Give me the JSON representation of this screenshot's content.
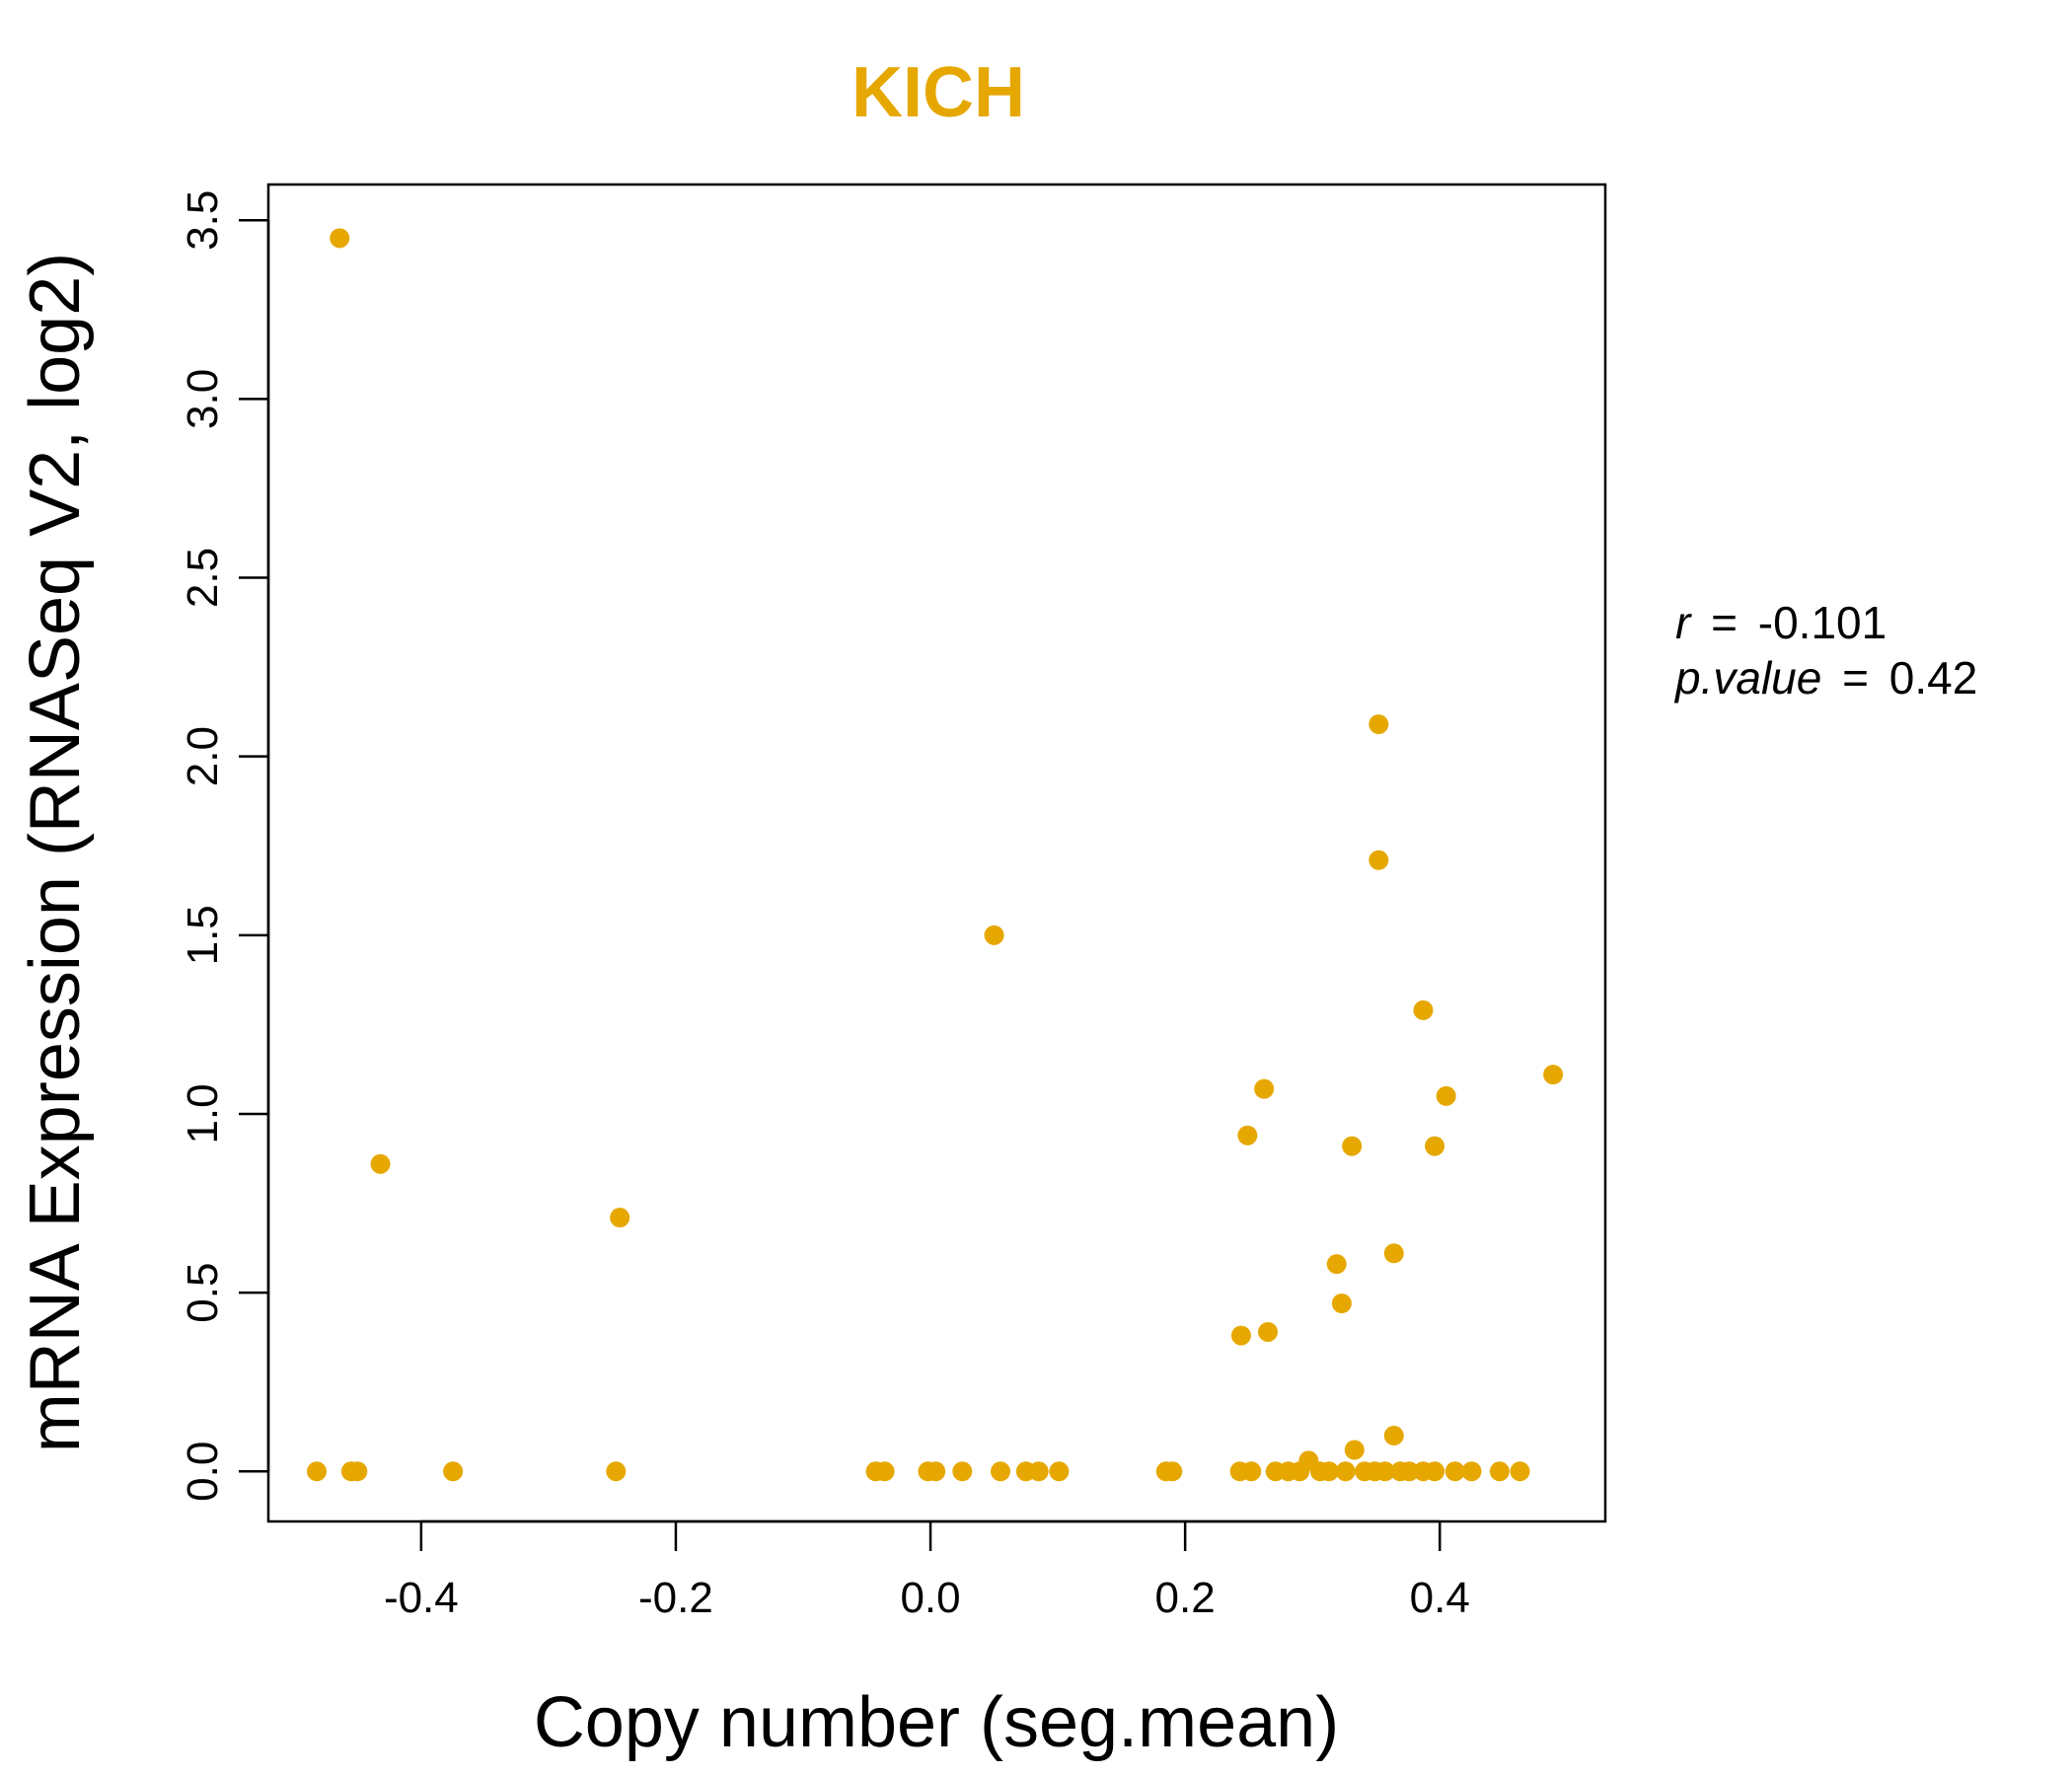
{
  "chart_data": {
    "type": "scatter",
    "title": "KICH",
    "xlabel": "Copy number (seg.mean)",
    "ylabel": "mRNA Expression (RNASeq V2, log2)",
    "xlim": [
      -0.52,
      0.53
    ],
    "ylim": [
      -0.14,
      3.6
    ],
    "xticks": [
      -0.4,
      -0.2,
      0.0,
      0.2,
      0.4
    ],
    "xtick_labels": [
      "-0.4",
      "-0.2",
      "0.0",
      "0.2",
      "0.4"
    ],
    "yticks": [
      0.0,
      0.5,
      1.0,
      1.5,
      2.0,
      2.5,
      3.0,
      3.5
    ],
    "ytick_labels": [
      "0.0",
      "0.5",
      "1.0",
      "1.5",
      "2.0",
      "2.5",
      "3.0",
      "3.5"
    ],
    "grid": false,
    "point_color": "#E6A800",
    "series": [
      {
        "x": [
          -0.464,
          -0.432,
          -0.244,
          0.05,
          0.352,
          0.352,
          0.387,
          0.489,
          0.262,
          0.405,
          0.249,
          0.331,
          0.396,
          0.364,
          0.319,
          0.323,
          0.265,
          0.244,
          0.364,
          0.333,
          0.297,
          -0.482,
          -0.455,
          -0.45,
          -0.375,
          -0.247,
          -0.043,
          -0.036,
          -0.002,
          0.004,
          0.025,
          0.055,
          0.075,
          0.085,
          0.101,
          0.185,
          0.19,
          0.243,
          0.252,
          0.271,
          0.281,
          0.29,
          0.306,
          0.313,
          0.326,
          0.341,
          0.349,
          0.357,
          0.369,
          0.376,
          0.387,
          0.396,
          0.412,
          0.425,
          0.447,
          0.463
        ],
        "y": [
          3.45,
          0.86,
          0.71,
          1.5,
          2.09,
          1.71,
          1.29,
          1.11,
          1.07,
          1.05,
          0.94,
          0.91,
          0.91,
          0.61,
          0.58,
          0.47,
          0.39,
          0.38,
          0.1,
          0.06,
          0.03,
          0,
          0,
          0,
          0,
          0,
          0,
          0,
          0,
          0,
          0,
          0,
          0,
          0,
          0,
          0,
          0,
          0,
          0,
          0,
          0,
          0,
          0,
          0,
          0,
          0,
          0,
          0,
          0,
          0,
          0,
          0,
          0,
          0,
          0,
          0
        ]
      }
    ],
    "annotations": {
      "r_label": "r",
      "r_value": "-0.101",
      "p_label": "p.value",
      "p_value": "0.42",
      "equals": "="
    }
  }
}
